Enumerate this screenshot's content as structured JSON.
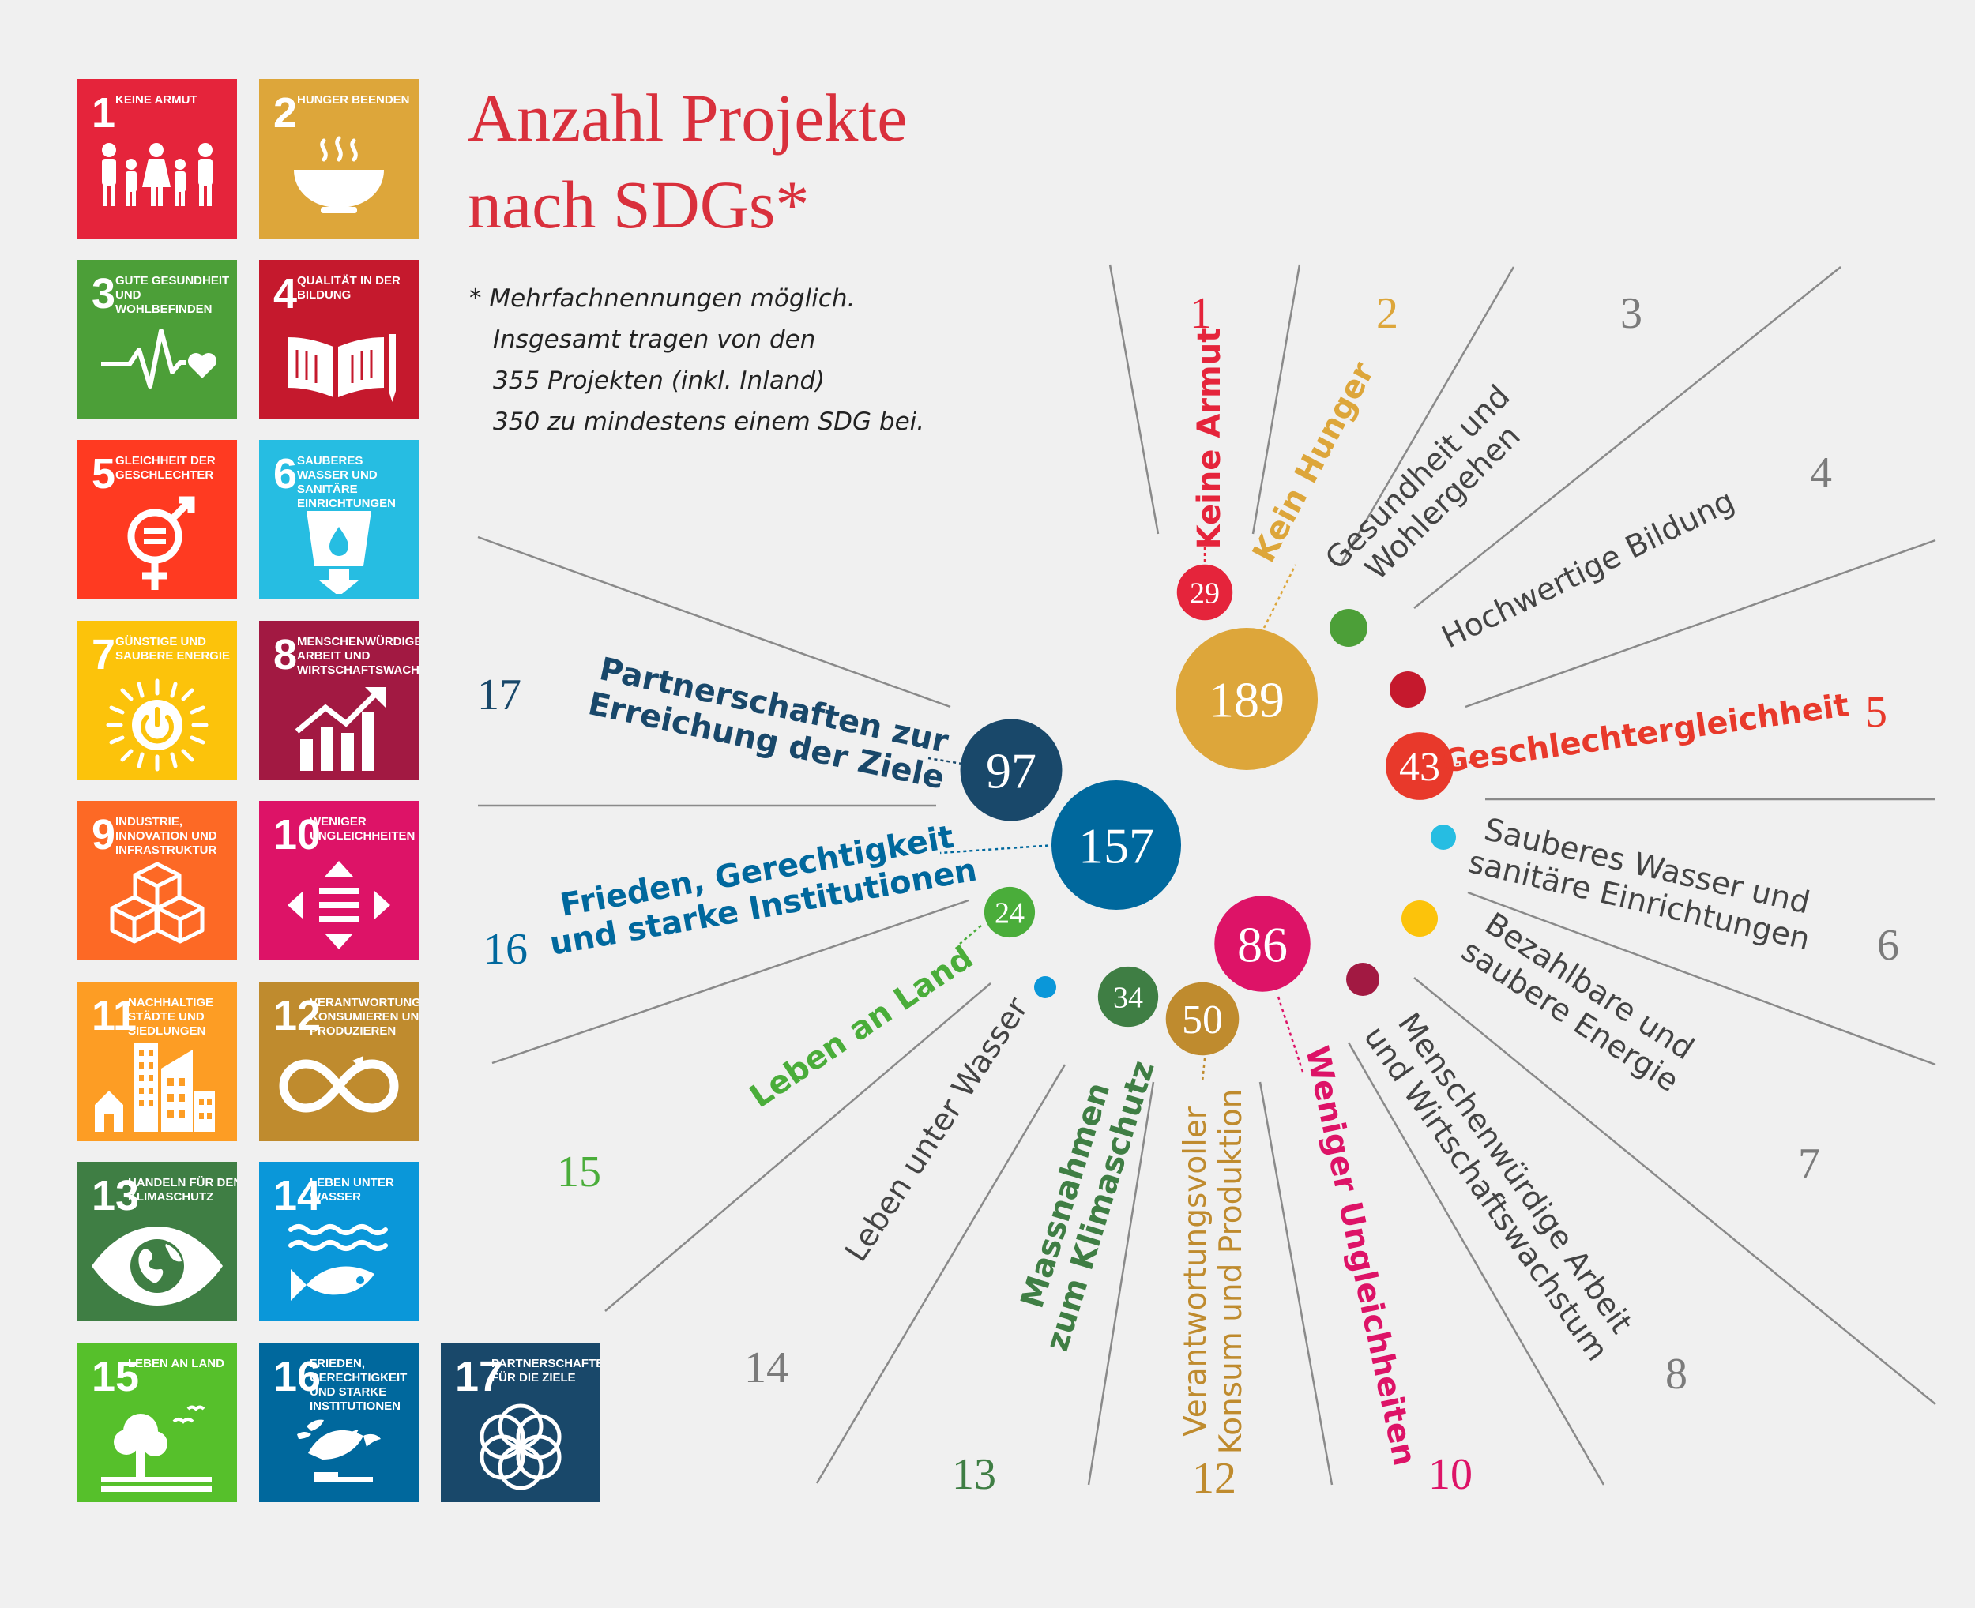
{
  "title_lines": [
    "Anzahl Projekte",
    "nach SDGs*"
  ],
  "note_lines": [
    "* Mehrfachnennungen möglich.",
    "Insgesamt tragen von den",
    "355 Projekten (inkl. Inland)",
    "350 zu mindestens einem SDG bei."
  ],
  "tiles": [
    {
      "num": "1",
      "label": "KEINE ARMUT",
      "icon": "family-icon",
      "color": "#e5243b"
    },
    {
      "num": "2",
      "label": "HUNGER BEENDEN",
      "icon": "bowl-icon",
      "color": "#dda63a"
    },
    {
      "num": "3",
      "label": "GUTE GESUNDHEIT UND WOHLBEFINDEN",
      "icon": "heartbeat-icon",
      "color": "#4c9f38"
    },
    {
      "num": "4",
      "label": "QUALITÄT IN DER BILDUNG",
      "icon": "book-icon",
      "color": "#c5192d"
    },
    {
      "num": "5",
      "label": "GLEICHHEIT DER GESCHLECHTER",
      "icon": "gender-equality-icon",
      "color": "#ff3a21"
    },
    {
      "num": "6",
      "label": "SAUBERES WASSER UND SANITÄRE EINRICHTUNGEN",
      "icon": "water-glass-icon",
      "color": "#26bde2"
    },
    {
      "num": "7",
      "label": "GÜNSTIGE UND SAUBERE ENERGIE",
      "icon": "sun-power-icon",
      "color": "#fcc30b"
    },
    {
      "num": "8",
      "label": "MENSCHENWÜRDIGE ARBEIT UND WIRTSCHAFTSWACHSTUM",
      "icon": "growth-chart-icon",
      "color": "#a21942"
    },
    {
      "num": "9",
      "label": "INDUSTRIE, INNOVATION UND INFRASTRUKTUR",
      "icon": "cubes-icon",
      "color": "#fd6925"
    },
    {
      "num": "10",
      "label": "WENIGER UNGLEICHHEITEN",
      "icon": "equality-arrows-icon",
      "color": "#dd1367"
    },
    {
      "num": "11",
      "label": "NACHHALTIGE STÄDTE UND SIEDLUNGEN",
      "icon": "city-icon",
      "color": "#fd9d24"
    },
    {
      "num": "12",
      "label": "VERANTWORTUNGSVOLL KONSUMIEREN UND PRODUZIEREN",
      "icon": "infinity-icon",
      "color": "#bf8b2e"
    },
    {
      "num": "13",
      "label": "HANDELN FÜR DEN KLIMASCHUTZ",
      "icon": "eye-globe-icon",
      "color": "#3f7e44"
    },
    {
      "num": "14",
      "label": "LEBEN UNTER WASSER",
      "icon": "fish-icon",
      "color": "#0a97d9"
    },
    {
      "num": "15",
      "label": "LEBEN AN LAND",
      "icon": "tree-icon",
      "color": "#56c02b"
    },
    {
      "num": "16",
      "label": "FRIEDEN, GERECHTIGKEIT UND STARKE INSTITUTIONEN",
      "icon": "dove-icon",
      "color": "#00689d"
    },
    {
      "num": "17",
      "label": "PARTNERSCHAFTEN FÜR DIE ZIELE",
      "icon": "rings-icon",
      "color": "#19486a"
    }
  ],
  "chart_data": {
    "type": "bubble",
    "categories": [
      "1",
      "2",
      "3",
      "4",
      "5",
      "6",
      "7",
      "8",
      "10",
      "12",
      "13",
      "14",
      "15",
      "16",
      "17"
    ],
    "series": [
      {
        "values": [
          29,
          189,
          null,
          null,
          43,
          null,
          null,
          null,
          86,
          50,
          34,
          null,
          24,
          157,
          97
        ]
      }
    ],
    "goals": [
      {
        "num": "1",
        "name": "Keine Armut",
        "value": 29,
        "color": "#e5243b"
      },
      {
        "num": "2",
        "name": "Kein Hunger",
        "value": 189,
        "color": "#dda63a"
      },
      {
        "num": "3",
        "name": "Gesundheit und Wohlergehen",
        "value": null,
        "color": "#4c9f38"
      },
      {
        "num": "4",
        "name": "Hochwertige Bildung",
        "value": null,
        "color": "#c5192d"
      },
      {
        "num": "5",
        "name": "Geschlechtergleichheit",
        "value": 43,
        "color": "#e8392b"
      },
      {
        "num": "6",
        "name": "Sauberes Wasser und sanitäre Einrichtungen",
        "value": null,
        "color": "#26bde2"
      },
      {
        "num": "7",
        "name": "Bezahlbare und saubere Energie",
        "value": null,
        "color": "#fcc30b"
      },
      {
        "num": "8",
        "name": "Menschenwürdige Arbeit und Wirtschaftswachstum",
        "value": null,
        "color": "#a21942"
      },
      {
        "num": "10",
        "name": "Weniger Ungleichheiten",
        "value": 86,
        "color": "#dd1367"
      },
      {
        "num": "12",
        "name": "Verantwortungsvoller Konsum und Produktion",
        "value": 50,
        "color": "#bf8b2e"
      },
      {
        "num": "13",
        "name": "Massnahmen zum Klimaschutz",
        "value": 34,
        "color": "#3f7e44"
      },
      {
        "num": "14",
        "name": "Leben unter Wasser",
        "value": null,
        "color": "#0a97d9"
      },
      {
        "num": "15",
        "name": "Leben an Land",
        "value": 24,
        "color": "#4aad3a"
      },
      {
        "num": "16",
        "name": "Frieden, Gerechtigkeit und starke Institutionen",
        "value": 157,
        "color": "#00689d"
      },
      {
        "num": "17",
        "name": "Partnerschaften zur Erreichung der Ziele",
        "value": 97,
        "color": "#19486a"
      }
    ]
  }
}
